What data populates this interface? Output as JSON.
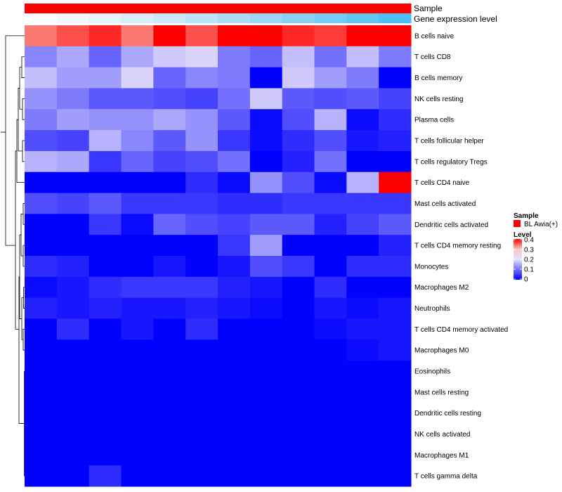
{
  "chart_data": {
    "type": "heatmap",
    "annotation_rows": [
      "Sample",
      "Gene expression level"
    ],
    "columns_count": 12,
    "sample_colors": [
      "#ff0000",
      "#ff0000",
      "#ff0000",
      "#ff0000",
      "#ff0000",
      "#ff0000",
      "#ff0000",
      "#ff0000",
      "#ff0000",
      "#ff0000",
      "#ff0000",
      "#ff0000"
    ],
    "expression_colors": [
      "#ffffff",
      "#f1f8fc",
      "#e5f3fa",
      "#d7eef8",
      "#c9e9f7",
      "#bbe4f6",
      "#a9def5",
      "#98d8f4",
      "#87d2f4",
      "#74ccf4",
      "#61c6f4",
      "#4dc0f5"
    ],
    "rows": [
      "B cells naive",
      "T cells CD8",
      "B cells memory",
      "NK cells resting",
      "Plasma cells",
      "T cells follicular helper",
      "T cells regulatory  Tregs",
      "T cells CD4 naive",
      "Mast cells activated",
      "Dendritic cells activated",
      "T cells CD4 memory resting",
      "Monocytes",
      "Macrophages M2",
      "Neutrophils",
      "T cells CD4 memory activated",
      "Macrophages M0",
      "Eosinophils",
      "Mast cells resting",
      "Dendritic cells resting",
      "NK cells activated",
      "Macrophages M1",
      "T cells gamma delta"
    ],
    "values": [
      [
        0.34,
        0.36,
        0.38,
        0.34,
        0.4,
        0.36,
        0.4,
        0.4,
        0.38,
        0.37,
        0.4,
        0.4
      ],
      [
        0.12,
        0.15,
        0.09,
        0.15,
        0.18,
        0.19,
        0.11,
        0.09,
        0.17,
        0.1,
        0.17,
        0.11
      ],
      [
        0.17,
        0.14,
        0.14,
        0.19,
        0.09,
        0.12,
        0.11,
        0.0,
        0.18,
        0.14,
        0.11,
        0.0
      ],
      [
        0.13,
        0.11,
        0.08,
        0.08,
        0.07,
        0.06,
        0.1,
        0.18,
        0.08,
        0.07,
        0.08,
        0.06
      ],
      [
        0.11,
        0.14,
        0.13,
        0.13,
        0.15,
        0.13,
        0.08,
        0.01,
        0.07,
        0.16,
        0.01,
        0.04
      ],
      [
        0.07,
        0.06,
        0.16,
        0.12,
        0.08,
        0.13,
        0.05,
        0.01,
        0.04,
        0.07,
        0.02,
        0.03
      ],
      [
        0.16,
        0.15,
        0.05,
        0.09,
        0.06,
        0.07,
        0.1,
        0.0,
        0.03,
        0.1,
        0.0,
        0.0
      ],
      [
        0.0,
        0.0,
        0.0,
        0.0,
        0.0,
        0.04,
        0.01,
        0.13,
        0.07,
        0.01,
        0.16,
        0.4
      ],
      [
        0.07,
        0.06,
        0.08,
        0.05,
        0.05,
        0.05,
        0.04,
        0.04,
        0.05,
        0.05,
        0.05,
        0.05
      ],
      [
        0.0,
        0.0,
        0.05,
        0.01,
        0.09,
        0.07,
        0.06,
        0.08,
        0.08,
        0.03,
        0.06,
        0.08
      ],
      [
        0.0,
        0.0,
        0.0,
        0.0,
        0.0,
        0.0,
        0.05,
        0.14,
        0.0,
        0.0,
        0.0,
        0.03
      ],
      [
        0.04,
        0.03,
        0.0,
        0.0,
        0.02,
        0.0,
        0.02,
        0.07,
        0.05,
        0.0,
        0.04,
        0.04
      ],
      [
        0.01,
        0.02,
        0.04,
        0.05,
        0.05,
        0.05,
        0.03,
        0.02,
        0.0,
        0.04,
        0.0,
        0.0
      ],
      [
        0.03,
        0.02,
        0.03,
        0.02,
        0.02,
        0.03,
        0.02,
        0.01,
        0.0,
        0.02,
        0.01,
        0.02
      ],
      [
        0.0,
        0.04,
        0.0,
        0.02,
        0.0,
        0.04,
        0.0,
        0.0,
        0.0,
        0.01,
        0.02,
        0.02
      ],
      [
        0.0,
        0.0,
        0.0,
        0.0,
        0.0,
        0.0,
        0.0,
        0.0,
        0.0,
        0.0,
        0.01,
        0.02
      ],
      [
        0.0,
        0.0,
        0.0,
        0.0,
        0.0,
        0.0,
        0.0,
        0.0,
        0.0,
        0.0,
        0.0,
        0.0
      ],
      [
        0.0,
        0.0,
        0.0,
        0.0,
        0.0,
        0.0,
        0.0,
        0.0,
        0.0,
        0.0,
        0.0,
        0.0
      ],
      [
        0.0,
        0.0,
        0.0,
        0.0,
        0.0,
        0.0,
        0.0,
        0.0,
        0.0,
        0.0,
        0.0,
        0.0
      ],
      [
        0.0,
        0.0,
        0.0,
        0.0,
        0.0,
        0.0,
        0.0,
        0.0,
        0.0,
        0.0,
        0.0,
        0.0
      ],
      [
        0.0,
        0.0,
        0.0,
        0.0,
        0.0,
        0.0,
        0.0,
        0.0,
        0.0,
        0.0,
        0.0,
        0.0
      ],
      [
        0.0,
        0.0,
        0.04,
        0.0,
        0.0,
        0.0,
        0.0,
        0.0,
        0.0,
        0.0,
        0.0,
        0.0
      ]
    ],
    "color_scale": {
      "min": 0,
      "max": 0.4,
      "stops": [
        {
          "value": 0,
          "color": "#0000ff"
        },
        {
          "value": 0.2,
          "color": "#e6e0fb"
        },
        {
          "value": 0.3,
          "color": "#f9c8c0"
        },
        {
          "value": 0.4,
          "color": "#ff0000"
        }
      ]
    },
    "legend": {
      "sample_title": "Sample",
      "sample_label": "BL Awia(+)",
      "sample_color": "#ff0000",
      "level_title": "Level",
      "level_ticks": [
        "0.4",
        "0.3",
        "0.2",
        "0.1",
        "0"
      ],
      "level_tick_values": [
        0.4,
        0.3,
        0.2,
        0.1,
        0
      ]
    },
    "dendrogram": "left, row clustering"
  }
}
